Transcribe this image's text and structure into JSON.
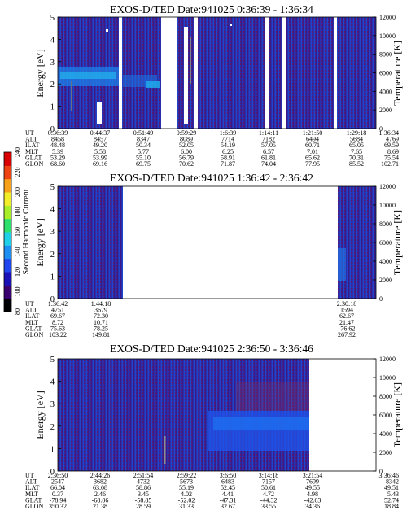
{
  "chart_data": {
    "type": "heatmap",
    "colorbar": {
      "label": "Second Harmonic Current",
      "ticks": [
        "80",
        "100",
        "120",
        "140",
        "160",
        "180",
        "200",
        "220",
        "240"
      ],
      "colors": [
        "#000000",
        "#3a0070",
        "#1a10b8",
        "#1f45ee",
        "#1d8ff2",
        "#1fd0e8",
        "#2ee06c",
        "#a8ef2a",
        "#f2ef2a",
        "#f7a11a",
        "#ef4212",
        "#d80000"
      ]
    },
    "panels": [
      {
        "title": "EXOS-D/TED   Date:941025  0:36:39 - 1:36:34",
        "ylabel": "Energy [eV]",
        "ylabel_right": "Temperature [K]",
        "ylim": [
          0,
          5
        ],
        "yticks": [
          "0",
          "1",
          "2",
          "3",
          "4",
          "5"
        ],
        "ylim_right": [
          0,
          12000
        ],
        "yticks_right": [
          "0",
          "2000",
          "4000",
          "6000",
          "8000",
          "10000",
          "12000"
        ],
        "ephemeris_labels": [
          "UT",
          "ALT",
          "ILAT",
          "MLT",
          "GLAT",
          "GLON"
        ],
        "ephemeris": [
          [
            "0:36:39",
            "8458",
            "48.48",
            "5.39",
            "53.29",
            "68.60"
          ],
          [
            "0:44:37",
            "8457",
            "49.20",
            "5.58",
            "53.99",
            "69.16"
          ],
          [
            "0:51:49",
            "8347",
            "50.34",
            "5.77",
            "55.10",
            "69.75"
          ],
          [
            "0:59:29",
            "8089",
            "52.05",
            "6.00",
            "56.79",
            "70.62"
          ],
          [
            "1:6:39",
            "7714",
            "54.19",
            "6.25",
            "58.91",
            "71.87"
          ],
          [
            "1:14:11",
            "7182",
            "57.05",
            "6.57",
            "61.81",
            "74.04"
          ],
          [
            "1:21:50",
            "6494",
            "60.71",
            "7.01",
            "65.62",
            "77.95"
          ],
          [
            "1:29:18",
            "5684",
            "65.05",
            "7.65",
            "70.31",
            "85.52"
          ],
          [
            "1:36:34",
            "4769",
            "69.59",
            "8.69",
            "75.54",
            "102.71"
          ]
        ]
      },
      {
        "title": "EXOS-D/TED   Date:941025  1:36:42 - 2:36:42",
        "ylabel": "Energy [eV]",
        "ylabel_right": "Temperature [K]",
        "ylim": [
          0,
          5
        ],
        "yticks": [
          "0",
          "1",
          "2",
          "3",
          "4",
          "5"
        ],
        "ylim_right": [
          0,
          12000
        ],
        "yticks_right": [
          "0",
          "2000",
          "4000",
          "6000",
          "8000",
          "10000",
          "12000"
        ],
        "ephemeris_labels": [
          "UT",
          "ALT",
          "ILAT",
          "MLT",
          "GLAT",
          "GLON"
        ],
        "ephemeris": [
          [
            "1:36:42",
            "4751",
            "69.67",
            "8.72",
            "75.63",
            "103.22"
          ],
          [
            "1:44:18",
            "3679",
            "72.30",
            "10.71",
            "78.25",
            "149.81"
          ],
          [
            "2:30:18",
            "1594",
            "62.67",
            "21.47",
            "-76.62",
            "267.92"
          ]
        ]
      },
      {
        "title": "EXOS-D/TED   Date:941025  2:36:50 - 3:36:46",
        "ylabel": "Energy [eV]",
        "ylabel_right": "Temperature [K]",
        "ylim": [
          0,
          5
        ],
        "yticks": [
          "0",
          "1",
          "2",
          "3",
          "4",
          "5"
        ],
        "ylim_right": [
          0,
          12000
        ],
        "yticks_right": [
          "0",
          "2000",
          "4000",
          "6000",
          "8000",
          "10000",
          "12000"
        ],
        "ephemeris_labels": [
          "UT",
          "ALT",
          "ILAT",
          "MLT",
          "GLAT",
          "GLON"
        ],
        "ephemeris": [
          [
            "2:36:50",
            "2547",
            "66.04",
            "0.37",
            "-78.94",
            "350.32"
          ],
          [
            "2:44:26",
            "3682",
            "63.08",
            "2.46",
            "-68.06",
            "21.38"
          ],
          [
            "2:51:54",
            "4732",
            "58.86",
            "3.45",
            "-58.85",
            "28.59"
          ],
          [
            "2:59:22",
            "5673",
            "55.19",
            "4.02",
            "-52.02",
            "31.33"
          ],
          [
            "3:6:50",
            "6483",
            "52.45",
            "4.41",
            "-47.31",
            "32.67"
          ],
          [
            "3:14:18",
            "7157",
            "50.61",
            "4.72",
            "-44.32",
            "33.55"
          ],
          [
            "3:21:54",
            "7699",
            "49.55",
            "4.98",
            "-42.63",
            "34.36"
          ],
          [
            "3:36:46",
            "8342",
            "49.51",
            "5.43",
            "52.74",
            "18.84"
          ]
        ]
      }
    ]
  }
}
